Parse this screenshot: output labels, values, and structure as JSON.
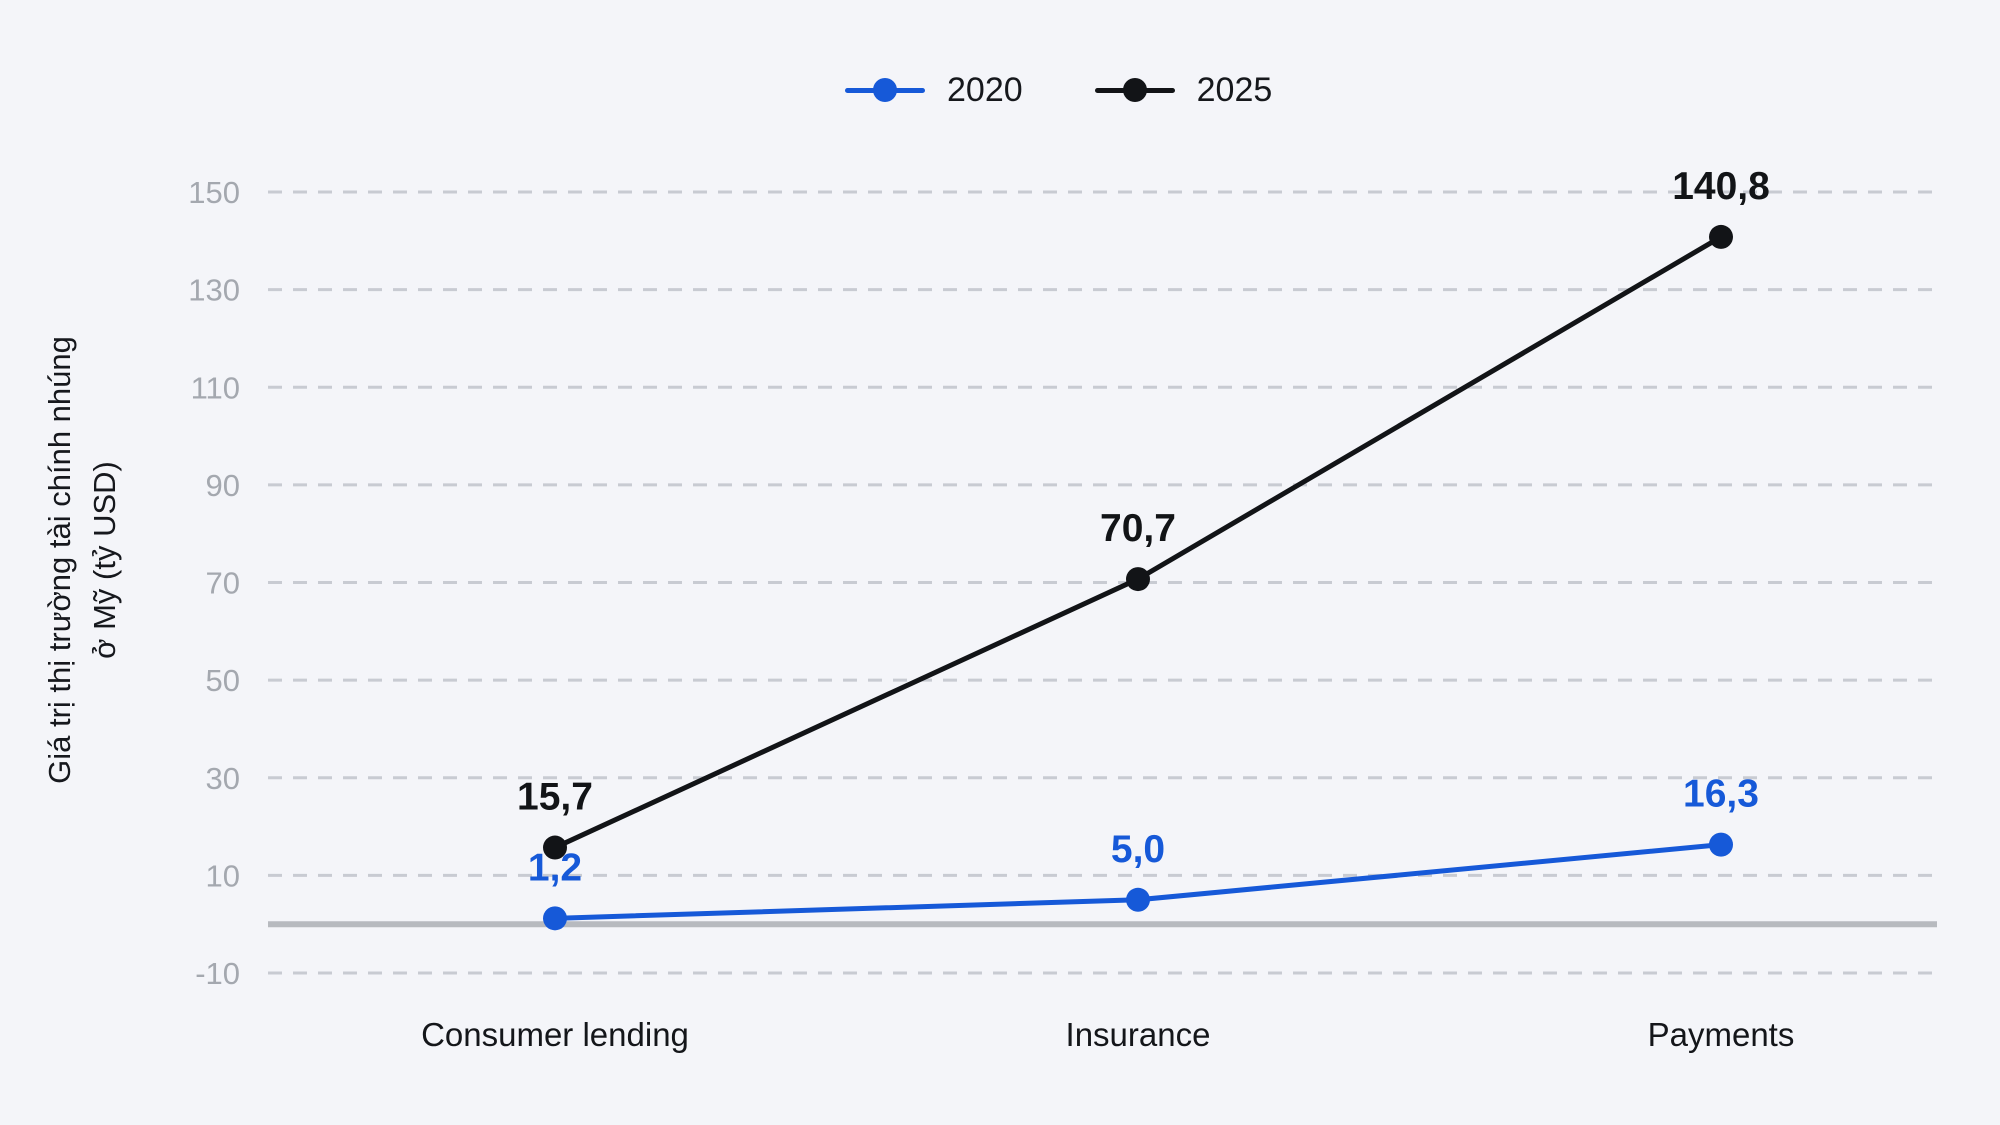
{
  "colors": {
    "background": "#f4f5f9",
    "grid": "#c8cbd2",
    "zero_line": "#b7babf",
    "tick_label": "#a4a8af",
    "axis_label": "#16181d",
    "category_label": "#14161a",
    "legend_label": "#16181c",
    "series_2020": "#1659d8",
    "series_2025": "#121417"
  },
  "chart_data": {
    "type": "line",
    "title": "",
    "categories": [
      "Consumer lending",
      "Insurance",
      "Payments"
    ],
    "series": [
      {
        "name": "2020",
        "color": "#1659d8",
        "values": [
          1.2,
          5.0,
          16.3
        ],
        "point_labels": [
          "1,2",
          "5,0",
          "16,3"
        ]
      },
      {
        "name": "2025",
        "color": "#121417",
        "values": [
          15.7,
          70.7,
          140.8
        ],
        "point_labels": [
          "15,7",
          "70,7",
          "140,8"
        ]
      }
    ],
    "xlabel": "",
    "ylabel": "Giá trị thị trường tài chính nhúng ở Mỹ (tỷ USD)",
    "ylabel_lines": [
      "Giá trị thị trường tài chính nhúng",
      "ở Mỹ (tỷ USD)"
    ],
    "yticks": [
      150,
      130,
      110,
      90,
      70,
      50,
      30,
      10,
      -10
    ],
    "ylim": [
      -10,
      150
    ],
    "grid": "horizontal-dashed",
    "zero_line": true,
    "legend_position": "top-center",
    "decimal_separator": ","
  }
}
